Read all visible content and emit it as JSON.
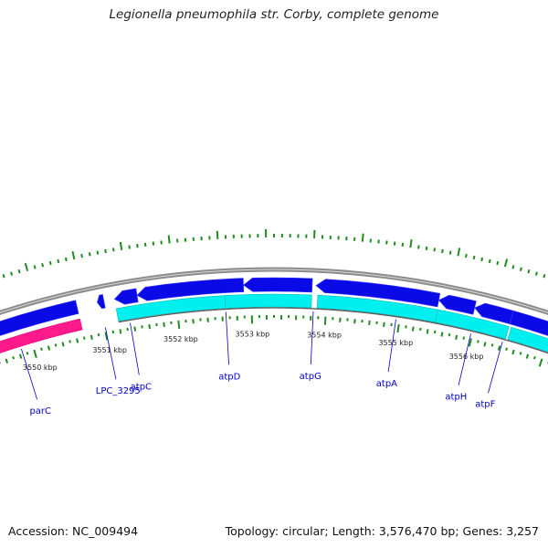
{
  "title": "Legionella pneumophila str. Corby, complete genome",
  "footer": {
    "accession": "Accession: NC_009494",
    "summary": "Topology: circular; Length: 3,576,470 bp; Genes: 3,257"
  },
  "colors": {
    "backbone": "#8c8c8c",
    "forward_cds": "#0a0ae6",
    "reverse_cds": "#00f0f0",
    "rna": "#ff1a8c",
    "tick": "#1e8c1e",
    "label": "#0000c8",
    "label_line": "#0000c8"
  },
  "kbp_labels": [
    "3550 kbp",
    "3551 kbp",
    "3552 kbp",
    "3553 kbp",
    "3554 kbp",
    "3555 kbp",
    "3556 kbp"
  ],
  "genes": [
    {
      "name": "parC",
      "kbp": 3549.84
    },
    {
      "name": "LPC_3295",
      "kbp": 3551.01
    },
    {
      "name": "atpC",
      "kbp": 3551.35
    },
    {
      "name": "atpD",
      "kbp": 3552.65
    },
    {
      "name": "atpG",
      "kbp": 3553.83
    },
    {
      "name": "atpA",
      "kbp": 3554.95
    },
    {
      "name": "atpH",
      "kbp": 3555.98
    },
    {
      "name": "atpF",
      "kbp": 3556.42
    }
  ],
  "features": {
    "forward_cds": [
      {
        "start": 3548.5,
        "end": 3550.7,
        "arrow": false
      },
      {
        "start": 3550.97,
        "end": 3551.06,
        "arrow": true
      },
      {
        "start": 3551.2,
        "end": 3551.5,
        "arrow": true
      },
      {
        "start": 3551.5,
        "end": 3552.9,
        "arrow": true
      },
      {
        "start": 3552.9,
        "end": 3553.8,
        "arrow": true
      },
      {
        "start": 3553.85,
        "end": 3555.47,
        "arrow": true
      },
      {
        "start": 3555.47,
        "end": 3555.95,
        "arrow": true
      },
      {
        "start": 3555.95,
        "end": 3556.45,
        "arrow": true
      },
      {
        "start": 3556.45,
        "end": 3557.2,
        "arrow": false
      }
    ],
    "reverse_cds": [
      {
        "start": 3551.2,
        "end": 3552.65
      },
      {
        "start": 3552.65,
        "end": 3553.8
      },
      {
        "start": 3553.88,
        "end": 3555.48
      },
      {
        "start": 3555.48,
        "end": 3556.45
      },
      {
        "start": 3556.48,
        "end": 3557.2
      }
    ],
    "rna": [
      {
        "start": 3548.5,
        "end": 3550.7
      }
    ]
  },
  "tick_range": {
    "start": 3548.4,
    "end": 3557.2,
    "step": 0.1
  }
}
